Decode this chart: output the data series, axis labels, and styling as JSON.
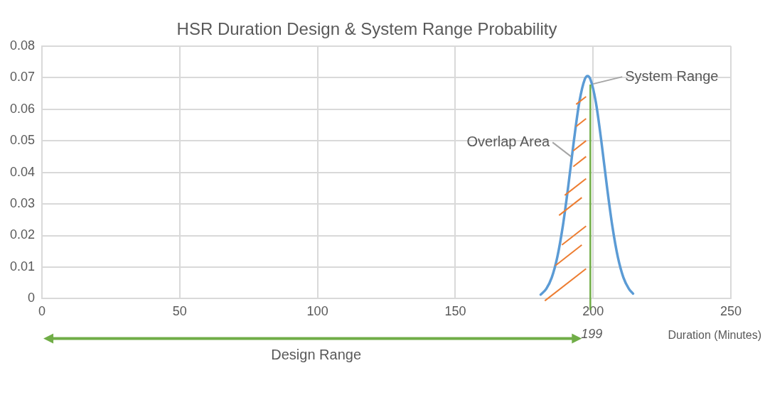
{
  "chart_data": {
    "type": "line",
    "title": "HSR Duration Design & System Range Probability",
    "xlabel": "Duration (Minutes)",
    "x": [
      181,
      183,
      185,
      187,
      189,
      191,
      193,
      195,
      197,
      198,
      199,
      201,
      203,
      205,
      207,
      209,
      211,
      213,
      214.5
    ],
    "series": [
      {
        "color": "#5b9bd5",
        "values": [
          0.0013,
          0.0031,
          0.0067,
          0.0131,
          0.0229,
          0.0357,
          0.0498,
          0.0622,
          0.0695,
          0.0705,
          0.0695,
          0.0622,
          0.0498,
          0.0357,
          0.0229,
          0.0131,
          0.0067,
          0.0031,
          0.0016
        ]
      }
    ],
    "xlim": [
      0,
      250
    ],
    "xticks": [
      0,
      50,
      100,
      150,
      200,
      250
    ],
    "ylim": [
      0,
      0.08
    ],
    "yticks": [
      0,
      0.01,
      0.02,
      0.03,
      0.04,
      0.05,
      0.06,
      0.07,
      0.08
    ],
    "ref_lines": [
      {
        "axis": "x",
        "value": 199,
        "label": "199",
        "color": "#70ad47"
      }
    ],
    "annotations": [
      {
        "text": "System Range",
        "x": 200,
        "y": 0.068
      },
      {
        "text": "Overlap Area",
        "x": 192,
        "y": 0.045
      },
      "Design Range"
    ],
    "grid": true,
    "legend": false,
    "marker": "none",
    "line_style": "solid"
  }
}
